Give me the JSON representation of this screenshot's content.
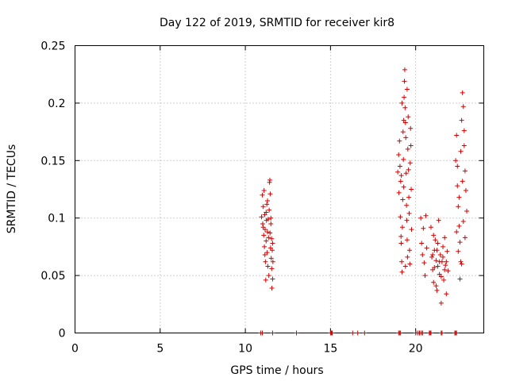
{
  "chart_data": {
    "type": "scatter",
    "title": "Day 122 of 2019, SRMTID for receiver kir8",
    "xlabel": "GPS time / hours",
    "ylabel": "SRMTID / TECUs",
    "xlim": [
      0,
      24
    ],
    "ylim": [
      0,
      0.25
    ],
    "xticks": [
      0,
      5,
      10,
      15,
      20
    ],
    "xtick_labels": [
      "0",
      "5",
      "10",
      "15",
      "20"
    ],
    "yticks": [
      0,
      0.05,
      0.1,
      0.15,
      0.2,
      0.25
    ],
    "ytick_labels": [
      "0",
      "0.05",
      "0.1",
      "0.15",
      "0.2",
      "0.25"
    ],
    "grid": true,
    "marker": "+",
    "color": "#d40000",
    "series": [
      {
        "name": "SRMTID",
        "points": [
          [
            10.95,
            0.101
          ],
          [
            11.0,
            0.12
          ],
          [
            11.02,
            0.095
          ],
          [
            11.05,
            0.11
          ],
          [
            11.08,
            0.085
          ],
          [
            11.1,
            0.124
          ],
          [
            11.12,
            0.075
          ],
          [
            11.14,
            0.103
          ],
          [
            11.16,
            0.09
          ],
          [
            11.18,
            0.062
          ],
          [
            11.2,
            0.046
          ],
          [
            11.22,
            0.08
          ],
          [
            11.24,
            0.098
          ],
          [
            11.26,
            0.112
          ],
          [
            11.28,
            0.07
          ],
          [
            11.3,
            0.088
          ],
          [
            11.32,
            0.058
          ],
          [
            11.34,
            0.099
          ],
          [
            11.36,
            0.083
          ],
          [
            11.38,
            0.05
          ],
          [
            11.4,
            0.107
          ],
          [
            11.42,
            0.131
          ],
          [
            11.44,
            0.133
          ],
          [
            11.46,
            0.121
          ],
          [
            11.48,
            0.074
          ],
          [
            11.5,
            0.095
          ],
          [
            11.52,
            0.065
          ],
          [
            11.54,
            0.082
          ],
          [
            11.56,
            0.039
          ],
          [
            11.58,
            0.072
          ],
          [
            11.6,
            0.047
          ],
          [
            11.62,
            0.062
          ],
          [
            11.22,
            0.105
          ],
          [
            11.3,
            0.115
          ],
          [
            11.45,
            0.087
          ],
          [
            11.5,
            0.1
          ],
          [
            11.55,
            0.056
          ],
          [
            11.6,
            0.078
          ],
          [
            11.05,
            0.092
          ],
          [
            11.15,
            0.068
          ],
          [
            18.95,
            0.14
          ],
          [
            19.0,
            0.155
          ],
          [
            19.02,
            0.122
          ],
          [
            19.05,
            0.167
          ],
          [
            19.08,
            0.145
          ],
          [
            19.1,
            0.101
          ],
          [
            19.12,
            0.132
          ],
          [
            19.14,
            0.084
          ],
          [
            19.16,
            0.137
          ],
          [
            19.18,
            0.062
          ],
          [
            19.2,
            0.053
          ],
          [
            19.22,
            0.092
          ],
          [
            19.24,
            0.116
          ],
          [
            19.26,
            0.175
          ],
          [
            19.28,
            0.151
          ],
          [
            19.3,
            0.127
          ],
          [
            19.32,
            0.205
          ],
          [
            19.34,
            0.219
          ],
          [
            19.36,
            0.229
          ],
          [
            19.38,
            0.196
          ],
          [
            19.4,
            0.183
          ],
          [
            19.42,
            0.17
          ],
          [
            19.44,
            0.139
          ],
          [
            19.46,
            0.111
          ],
          [
            19.48,
            0.098
          ],
          [
            19.5,
            0.081
          ],
          [
            19.52,
            0.066
          ],
          [
            19.54,
            0.16
          ],
          [
            19.56,
            0.188
          ],
          [
            19.58,
            0.142
          ],
          [
            19.6,
            0.118
          ],
          [
            19.62,
            0.104
          ],
          [
            19.64,
            0.072
          ],
          [
            19.66,
            0.06
          ],
          [
            19.68,
            0.148
          ],
          [
            19.7,
            0.178
          ],
          [
            19.72,
            0.163
          ],
          [
            19.74,
            0.125
          ],
          [
            19.76,
            0.09
          ],
          [
            19.2,
            0.2
          ],
          [
            19.3,
            0.185
          ],
          [
            19.5,
            0.212
          ],
          [
            19.15,
            0.078
          ],
          [
            19.4,
            0.058
          ],
          [
            20.3,
            0.1
          ],
          [
            20.35,
            0.078
          ],
          [
            20.4,
            0.068
          ],
          [
            20.45,
            0.091
          ],
          [
            20.5,
            0.061
          ],
          [
            20.55,
            0.05
          ],
          [
            20.6,
            0.102
          ],
          [
            20.65,
            0.074
          ],
          [
            20.9,
            0.092
          ],
          [
            20.95,
            0.066
          ],
          [
            21.0,
            0.055
          ],
          [
            21.05,
            0.044
          ],
          [
            21.1,
            0.072
          ],
          [
            21.15,
            0.081
          ],
          [
            21.2,
            0.063
          ],
          [
            21.25,
            0.037
          ],
          [
            21.3,
            0.058
          ],
          [
            21.35,
            0.098
          ],
          [
            21.4,
            0.051
          ],
          [
            21.45,
            0.068
          ],
          [
            21.5,
            0.026
          ],
          [
            21.55,
            0.062
          ],
          [
            21.6,
            0.075
          ],
          [
            21.65,
            0.046
          ],
          [
            21.7,
            0.083
          ],
          [
            21.75,
            0.059
          ],
          [
            21.8,
            0.034
          ],
          [
            21.85,
            0.071
          ],
          [
            21.9,
            0.054
          ],
          [
            21.0,
            0.068
          ],
          [
            21.1,
            0.057
          ],
          [
            21.2,
            0.041
          ],
          [
            21.3,
            0.078
          ],
          [
            21.4,
            0.062
          ],
          [
            21.5,
            0.049
          ],
          [
            21.6,
            0.066
          ],
          [
            21.7,
            0.055
          ],
          [
            21.8,
            0.062
          ],
          [
            21.05,
            0.085
          ],
          [
            21.25,
            0.072
          ],
          [
            22.35,
            0.15
          ],
          [
            22.4,
            0.172
          ],
          [
            22.45,
            0.128
          ],
          [
            22.5,
            0.11
          ],
          [
            22.55,
            0.093
          ],
          [
            22.6,
            0.079
          ],
          [
            22.65,
            0.062
          ],
          [
            22.7,
            0.185
          ],
          [
            22.75,
            0.209
          ],
          [
            22.8,
            0.197
          ],
          [
            22.85,
            0.163
          ],
          [
            22.9,
            0.141
          ],
          [
            22.95,
            0.124
          ],
          [
            23.0,
            0.106
          ],
          [
            22.4,
            0.088
          ],
          [
            22.5,
            0.071
          ],
          [
            22.6,
            0.047
          ],
          [
            22.7,
            0.06
          ],
          [
            22.8,
            0.097
          ],
          [
            22.9,
            0.083
          ],
          [
            22.45,
            0.145
          ],
          [
            22.55,
            0.118
          ],
          [
            22.65,
            0.158
          ],
          [
            22.75,
            0.132
          ],
          [
            22.85,
            0.176
          ]
        ]
      }
    ],
    "zero_points_x": [
      10.9,
      11.0,
      11.6,
      13.0,
      15.0,
      15.05,
      15.1,
      16.3,
      16.6,
      17.0,
      19.0,
      19.05,
      19.1,
      20.0,
      20.1,
      20.2,
      20.25,
      20.35,
      20.4,
      20.8,
      20.85,
      20.9,
      21.5,
      21.55,
      22.3,
      22.35,
      22.4
    ]
  }
}
